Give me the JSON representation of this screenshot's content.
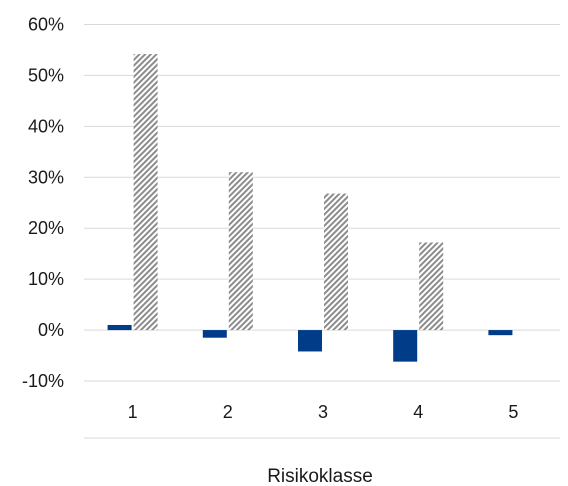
{
  "chart_data": {
    "type": "bar",
    "title": "",
    "xlabel": "Risikoklasse",
    "ylabel": "",
    "categories": [
      "1",
      "2",
      "3",
      "4",
      "5"
    ],
    "y_ticks": [
      "60%",
      "50%",
      "40%",
      "30%",
      "20%",
      "10%",
      "0%",
      "-10%"
    ],
    "ylim": [
      -10,
      60
    ],
    "grid": true,
    "legend": "none",
    "series": [
      {
        "values": [
          1,
          -1.5,
          -4.2,
          -6.2,
          -1
        ],
        "color": "#003c88",
        "fill": "solid"
      },
      {
        "values": [
          54.2,
          31,
          26.8,
          17.2,
          0
        ],
        "color": "#8c8c8c",
        "fill": "diagonal-hatch"
      }
    ]
  }
}
